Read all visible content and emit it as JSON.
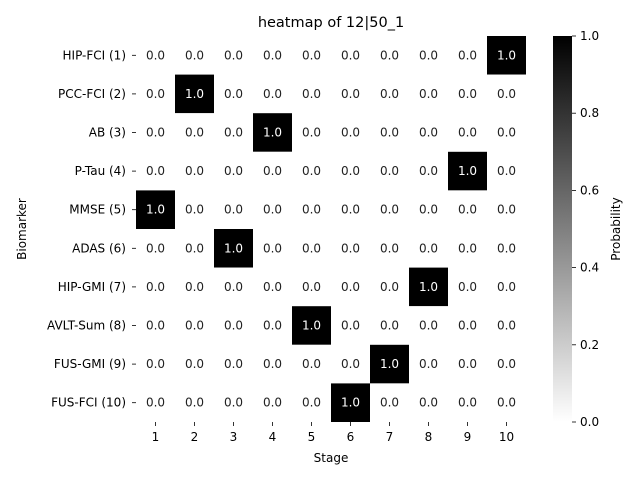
{
  "chart_data": {
    "type": "heatmap",
    "title": "heatmap of 12|50_1",
    "xlabel": "Stage",
    "ylabel": "Biomarker",
    "x_categories": [
      "1",
      "2",
      "3",
      "4",
      "5",
      "6",
      "7",
      "8",
      "9",
      "10"
    ],
    "y_categories": [
      "HIP-FCI (1)",
      "PCC-FCI (2)",
      "AB (3)",
      "P-Tau (4)",
      "MMSE (5)",
      "ADAS (6)",
      "HIP-GMI (7)",
      "AVLT-Sum (8)",
      "FUS-GMI (9)",
      "FUS-FCI (10)"
    ],
    "values": [
      [
        0,
        0,
        0,
        0,
        0,
        0,
        0,
        0,
        0,
        1
      ],
      [
        0,
        1,
        0,
        0,
        0,
        0,
        0,
        0,
        0,
        0
      ],
      [
        0,
        0,
        0,
        1,
        0,
        0,
        0,
        0,
        0,
        0
      ],
      [
        0,
        0,
        0,
        0,
        0,
        0,
        0,
        0,
        1,
        0
      ],
      [
        1,
        0,
        0,
        0,
        0,
        0,
        0,
        0,
        0,
        0
      ],
      [
        0,
        0,
        1,
        0,
        0,
        0,
        0,
        0,
        0,
        0
      ],
      [
        0,
        0,
        0,
        0,
        0,
        0,
        0,
        1,
        0,
        0
      ],
      [
        0,
        0,
        0,
        0,
        1,
        0,
        0,
        0,
        0,
        0
      ],
      [
        0,
        0,
        0,
        0,
        0,
        0,
        1,
        0,
        0,
        0
      ],
      [
        0,
        0,
        0,
        0,
        0,
        1,
        0,
        0,
        0,
        0
      ]
    ],
    "value_format": "1 decimal",
    "colormap": {
      "low": "#ffffff",
      "high": "#000000"
    },
    "colorbar": {
      "label": "Probability",
      "range": [
        0,
        1
      ],
      "ticks": [
        "0.0",
        "0.2",
        "0.4",
        "0.6",
        "0.8",
        "1.0"
      ]
    },
    "grid": false
  }
}
